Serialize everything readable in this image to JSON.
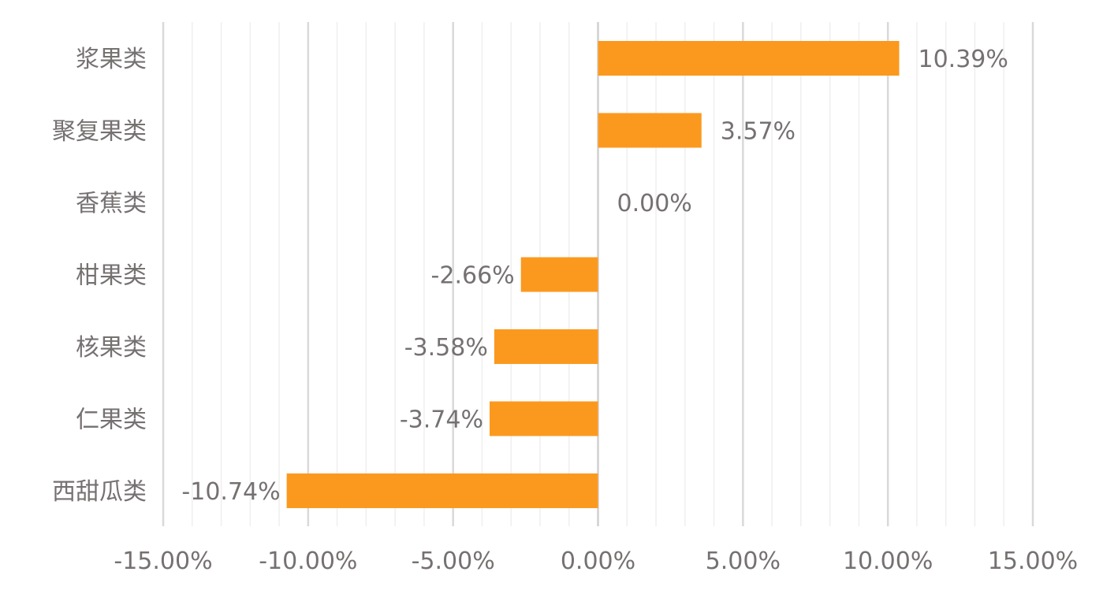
{
  "chart_data": {
    "type": "bar",
    "orientation": "horizontal",
    "categories": [
      "浆果类",
      "聚复果类",
      "香蕉类",
      "柑果类",
      "核果类",
      "仁果类",
      "西甜瓜类"
    ],
    "values": [
      10.39,
      3.57,
      0.0,
      -2.66,
      -3.58,
      -3.74,
      -10.74
    ],
    "data_labels": [
      "10.39%",
      "3.57%",
      "0.00%",
      "-2.66%",
      "-3.58%",
      "-3.74%",
      "-10.74%"
    ],
    "xlim": [
      -15,
      15
    ],
    "x_ticks": [
      -15,
      -10,
      -5,
      0,
      5,
      10,
      15
    ],
    "x_tick_labels": [
      "-15.00%",
      "-10.00%",
      "-5.00%",
      "0.00%",
      "5.00%",
      "10.00%",
      "15.00%"
    ],
    "minor_step": 1,
    "grid": true,
    "bar_color": "#FB991F",
    "title": "",
    "xlabel": "",
    "ylabel": ""
  }
}
